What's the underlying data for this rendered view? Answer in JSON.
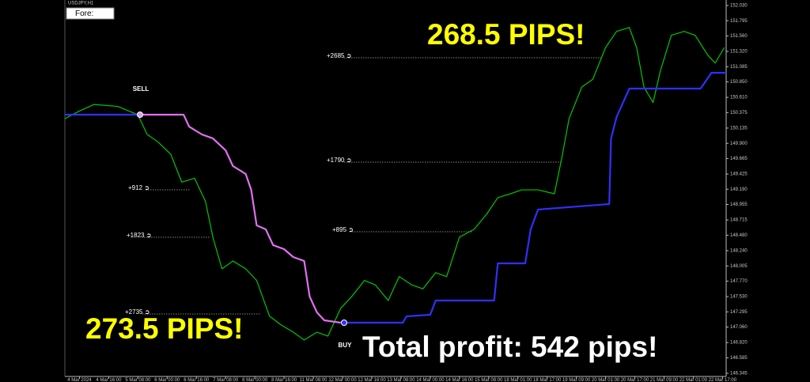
{
  "chart_data": {
    "type": "line",
    "title": "USDJPY,H1",
    "window_label": "Fore:",
    "xlim": [
      0,
      362
    ],
    "ylim": [
      146.296,
      152.115
    ],
    "xticks": [
      {
        "value": 8,
        "label": "4 Mar 2024"
      },
      {
        "value": 24,
        "label": "4 Mar 16:00"
      },
      {
        "value": 40,
        "label": "5 Mar 08:00"
      },
      {
        "value": 56,
        "label": "6 Mar 00:00"
      },
      {
        "value": 72,
        "label": "6 Mar 16:00"
      },
      {
        "value": 88,
        "label": "7 Mar 08:00"
      },
      {
        "value": 104,
        "label": "8 Mar 00:00"
      },
      {
        "value": 120,
        "label": "8 Mar 16:00"
      },
      {
        "value": 136,
        "label": "11 Mar 08:00"
      },
      {
        "value": 152,
        "label": "12 Mar 00:00"
      },
      {
        "value": 168,
        "label": "12 Mar 16:00"
      },
      {
        "value": 184,
        "label": "13 Mar 08:00"
      },
      {
        "value": 200,
        "label": "14 Mar 00:00"
      },
      {
        "value": 216,
        "label": "14 Mar 16:00"
      },
      {
        "value": 232,
        "label": "15 Mar 08:00"
      },
      {
        "value": 248,
        "label": "18 Mar 01:00"
      },
      {
        "value": 264,
        "label": "18 Mar 17:00"
      },
      {
        "value": 280,
        "label": "19 Mar 09:00"
      },
      {
        "value": 296,
        "label": "20 Mar 01:00"
      },
      {
        "value": 312,
        "label": "20 Mar 17:00"
      },
      {
        "value": 328,
        "label": "21 Mar 09:00"
      },
      {
        "value": 344,
        "label": "22 Mar 01:00"
      },
      {
        "value": 360,
        "label": "22 Mar 17:00"
      }
    ],
    "yticks": [
      {
        "value": 152.03,
        "label": "152.030"
      },
      151.795,
      {
        "value": 151.56,
        "label": "151.560"
      },
      {
        "value": 151.32,
        "label": "151.320"
      },
      151.085,
      {
        "value": 150.85,
        "label": "150.850"
      },
      {
        "value": 150.61,
        "label": "150.610"
      },
      150.375,
      150.135,
      {
        "value": 149.9,
        "label": "149.900"
      },
      149.665,
      149.425,
      {
        "value": 149.19,
        "label": "149.190"
      },
      148.955,
      148.715,
      {
        "value": 148.48,
        "label": "148.480"
      },
      {
        "value": 148.24,
        "label": "148.240"
      },
      148.005,
      {
        "value": 147.77,
        "label": "147.770"
      },
      {
        "value": 147.53,
        "label": "147.530"
      },
      147.295,
      {
        "value": 147.06,
        "label": "147.060"
      },
      {
        "value": 146.82,
        "label": "146.820"
      },
      146.585,
      146.345
    ],
    "series": [
      {
        "color": "#00c800",
        "x": [
          0,
          8,
          16,
          29,
          40,
          45,
          51,
          58,
          64,
          71,
          77,
          81,
          86,
          92,
          99,
          105,
          112,
          118,
          125,
          131,
          138,
          144,
          151,
          157,
          164,
          170,
          177,
          183,
          190,
          196,
          203,
          209,
          216,
          224,
          231,
          237,
          244,
          250,
          259,
          268,
          272,
          276,
          283,
          289,
          296,
          302,
          309,
          313,
          317,
          322,
          326,
          332,
          339,
          345,
          352,
          356,
          361
        ],
        "values": [
          150.28,
          150.4,
          150.5,
          150.47,
          150.34,
          150.04,
          149.92,
          149.73,
          149.3,
          149.36,
          149.0,
          148.45,
          147.96,
          148.08,
          147.96,
          147.78,
          147.23,
          147.1,
          146.98,
          146.86,
          146.98,
          146.92,
          147.35,
          147.53,
          147.78,
          147.71,
          147.47,
          147.84,
          147.71,
          147.65,
          147.9,
          147.84,
          148.45,
          148.57,
          148.81,
          149.06,
          149.12,
          149.18,
          149.18,
          149.12,
          149.67,
          150.28,
          150.77,
          150.89,
          151.38,
          151.63,
          151.69,
          151.38,
          150.77,
          150.53,
          151.02,
          151.57,
          151.63,
          151.57,
          151.26,
          151.14,
          151.38
        ]
      },
      {
        "color": "#3030ff",
        "x": [
          0,
          40
        ],
        "values": [
          150.342,
          150.342
        ]
      },
      {
        "color": "#e070f0",
        "x": [
          40,
          65,
          68,
          75,
          81,
          88,
          92,
          99,
          102,
          105,
          110,
          114,
          120,
          125,
          131,
          134,
          138,
          142,
          151
        ],
        "values": [
          150.342,
          150.342,
          150.159,
          150.037,
          149.976,
          149.792,
          149.548,
          149.426,
          149.181,
          148.631,
          148.57,
          148.326,
          148.264,
          148.142,
          148.081,
          147.531,
          147.286,
          147.164,
          147.127
        ]
      },
      {
        "color": "#3030ff",
        "x": [
          151,
          185,
          187,
          200,
          203,
          235,
          237,
          252,
          255,
          259,
          298,
          299,
          302,
          309,
          348,
          354,
          362
        ],
        "values": [
          147.127,
          147.127,
          147.225,
          147.25,
          147.47,
          147.47,
          148.044,
          148.044,
          148.57,
          148.876,
          148.961,
          149.976,
          150.306,
          150.746,
          150.746,
          150.99,
          150.99
        ]
      }
    ],
    "annotations": [
      "SELL",
      "BUY",
      "+912 ➲",
      "+1823 ➲",
      "+2735 ➲",
      "+895 ➲",
      "+1790 ➲",
      "+2685 ➲"
    ],
    "headlines": [
      "268.5 PIPS!",
      "273.5 PIPS!",
      "Total profit: 542 pips!"
    ]
  }
}
